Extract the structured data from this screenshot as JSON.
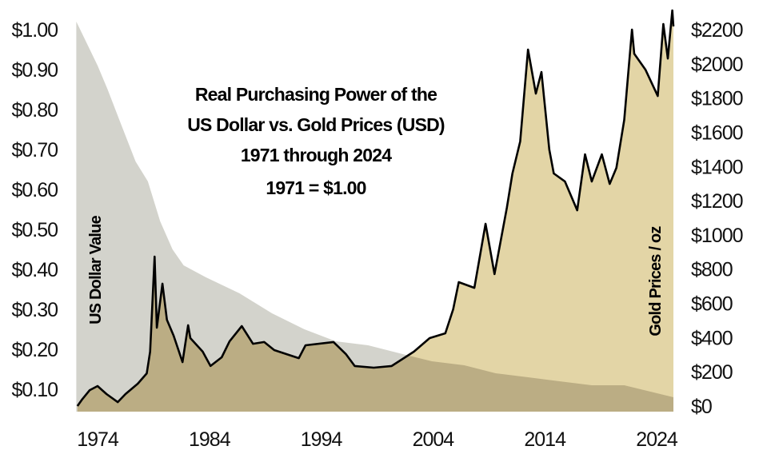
{
  "chart_data": {
    "type": "area",
    "title_lines": [
      "Real  Purchasing Power of the",
      "US Dollar vs. Gold Prices (USD)",
      "1971 through 2024",
      "1971 = $1.00"
    ],
    "ylabel_left": "US Dollar Value",
    "ylabel_right": "Gold Prices / oz",
    "x_ticks": [
      "1974",
      "1984",
      "1994",
      "2004",
      "2014",
      "2024"
    ],
    "x_tick_values": [
      1974,
      1984,
      1994,
      2004,
      2014,
      2024
    ],
    "xlim": [
      1972.1,
      2025.5
    ],
    "y_left_ticks": [
      "$1.00",
      "$0.90",
      "$0.80",
      "$0.70",
      "$0.60",
      "$0.50",
      "$0.40",
      "$0.30",
      "$0.20",
      "$0.10"
    ],
    "y_left_tick_values": [
      1.0,
      0.9,
      0.8,
      0.7,
      0.6,
      0.5,
      0.4,
      0.3,
      0.2,
      0.1
    ],
    "y_right_ticks": [
      "$2200",
      "$2000",
      "$1800",
      "$1600",
      "$1400",
      "$1200",
      "$1000",
      "$800",
      "$600",
      "$400",
      "$200",
      "$0"
    ],
    "y_right_tick_values": [
      2200,
      2000,
      1800,
      1600,
      1400,
      1200,
      1000,
      800,
      600,
      400,
      200,
      0
    ],
    "grid": false,
    "colors": {
      "dollar_area": "#d3d3cc",
      "gold_area": "#e3d5a6",
      "overlap_area": "#bbad84",
      "gold_line": "#000000"
    },
    "series": [
      {
        "name": "US Dollar Value",
        "axis": "left",
        "x": [
          1972.1,
          1974.0,
          1974.9,
          1976.0,
          1977.4,
          1978.5,
          1979.6,
          1980.7,
          1981.7,
          1983.7,
          1986.7,
          1989.6,
          1992.5,
          1995.3,
          1998.2,
          2001.0,
          2003.9,
          2006.8,
          2009.6,
          2012.5,
          2015.3,
          2018.2,
          2021.1,
          2025.5
        ],
        "y": [
          1.02,
          0.91,
          0.85,
          0.77,
          0.67,
          0.62,
          0.52,
          0.45,
          0.41,
          0.38,
          0.34,
          0.29,
          0.25,
          0.22,
          0.21,
          0.19,
          0.17,
          0.16,
          0.14,
          0.13,
          0.12,
          0.11,
          0.11,
          0.08
        ]
      },
      {
        "name": "Gold Prices / oz",
        "axis": "right",
        "x": [
          1972.2,
          1972.6,
          1973.3,
          1974.0,
          1974.8,
          1975.8,
          1976.5,
          1977.6,
          1978.4,
          1978.7,
          1979.1,
          1979.3,
          1979.8,
          1980.2,
          1980.8,
          1981.6,
          1982.1,
          1982.3,
          1983.4,
          1984.1,
          1985.1,
          1985.8,
          1986.9,
          1987.9,
          1988.9,
          1989.8,
          1992.0,
          1992.6,
          1995.1,
          1996.2,
          1997.0,
          1998.7,
          2000.3,
          2002.3,
          2003.7,
          2005.1,
          2005.8,
          2006.3,
          2007.7,
          2008.7,
          2009.5,
          2010.6,
          2011.1,
          2011.8,
          2012.5,
          2013.2,
          2013.7,
          2014.4,
          2014.8,
          2015.8,
          2016.9,
          2017.6,
          2018.2,
          2019.1,
          2019.8,
          2020.4,
          2021.1,
          2021.8,
          2022.0,
          2023.0,
          2024.1,
          2024.6,
          2025.0,
          2025.4,
          2025.5
        ],
        "y": [
          0,
          37,
          93,
          117,
          70,
          23,
          70,
          131,
          191,
          318,
          873,
          458,
          715,
          504,
          411,
          257,
          472,
          397,
          318,
          234,
          285,
          378,
          467,
          364,
          374,
          327,
          280,
          355,
          374,
          304,
          234,
          224,
          234,
          318,
          397,
          425,
          565,
          724,
          691,
          1065,
          771,
          1158,
          1359,
          1546,
          2083,
          1826,
          1952,
          1499,
          1359,
          1312,
          1144,
          1471,
          1312,
          1471,
          1298,
          1392,
          1672,
          2200,
          2059,
          1966,
          1812,
          2232,
          2031,
          2312,
          2218
        ]
      }
    ]
  }
}
